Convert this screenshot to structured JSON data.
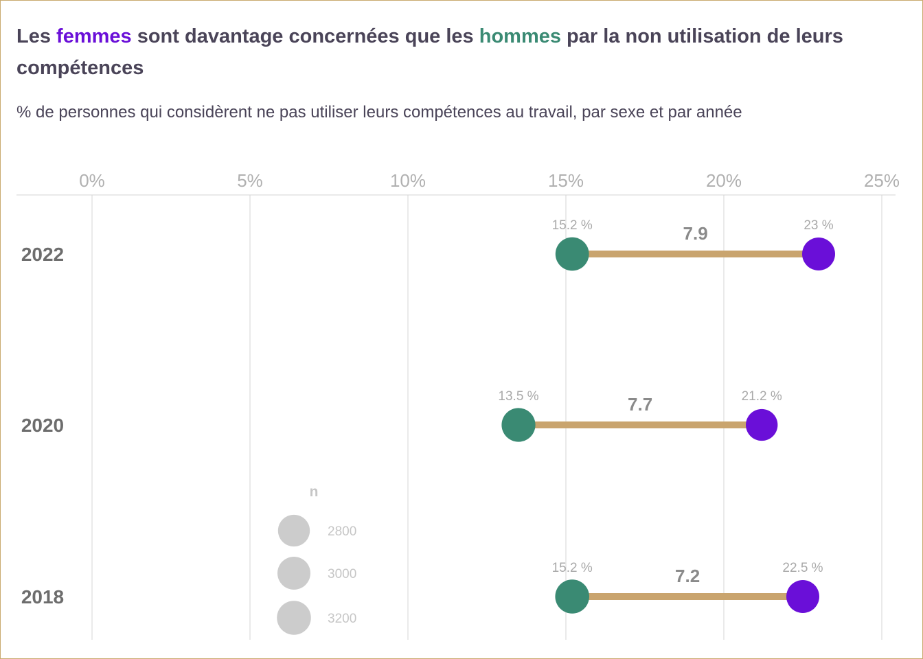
{
  "title": {
    "part1": "Les ",
    "women_word": "femmes",
    "part2": " sont davantage concernées que les ",
    "men_word": "hommes",
    "part3": " par la non utilisation de leurs compétences"
  },
  "subtitle": "% de personnes qui considèrent ne pas utiliser leurs compétences au travail, par sexe et par année",
  "colors": {
    "women": "#6a0fd8",
    "men": "#3a8a73",
    "connector": "#c9a46e",
    "grid": "#d4d4d4",
    "legend_circle": "#cccccc",
    "frame": "#c9a96e"
  },
  "chart_data": {
    "type": "dumbbell",
    "x_axis": {
      "ticks": [
        0,
        5,
        10,
        15,
        20,
        25
      ],
      "tick_labels": [
        "0%",
        "5%",
        "10%",
        "15%",
        "20%",
        "25%"
      ],
      "range": [
        0,
        25
      ],
      "position": "top"
    },
    "grid": true,
    "rows": [
      {
        "year": "2022",
        "men": 15.2,
        "men_label": "15.2 %",
        "women": 23.0,
        "women_label": "23 %",
        "gap": "7.9",
        "men_n": 3100,
        "women_n": 3000
      },
      {
        "year": "2020",
        "men": 13.5,
        "men_label": "13.5 %",
        "women": 21.2,
        "women_label": "21.2 %",
        "gap": "7.7",
        "men_n": 3150,
        "women_n": 2800
      },
      {
        "year": "2018",
        "men": 15.2,
        "men_label": "15.2 %",
        "women": 22.5,
        "women_label": "22.5 %",
        "gap": "7.2",
        "men_n": 3200,
        "women_n": 3000
      }
    ],
    "size_legend": {
      "title": "n",
      "items": [
        {
          "label": "2800",
          "n": 2800
        },
        {
          "label": "3000",
          "n": 3000
        },
        {
          "label": "3200",
          "n": 3200
        }
      ]
    }
  }
}
